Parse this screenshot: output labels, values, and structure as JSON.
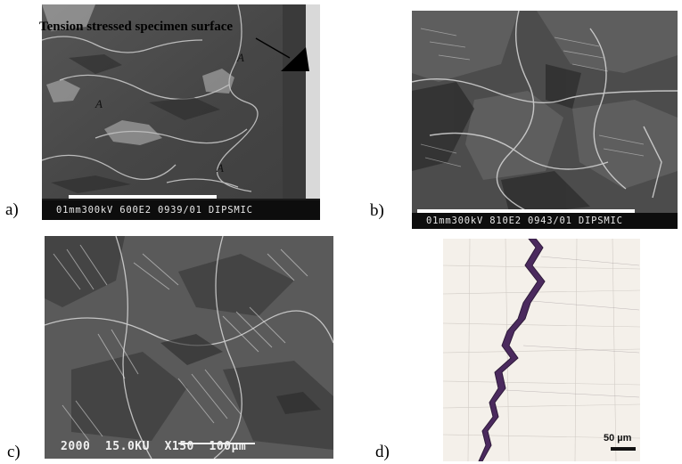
{
  "panels": {
    "a": {
      "label": "a)",
      "annotation": "Tension stressed specimen surface",
      "markers": [
        "A",
        "A",
        "A"
      ],
      "infobar": "01mm300kV 600E2 0939/01 DIPSMIC"
    },
    "b": {
      "label": "b)",
      "infobar": "01mm300kV 810E2 0943/01 DIPSMIC"
    },
    "c": {
      "label": "c)",
      "overlay": "2000  15.0KU  X150  100µm"
    },
    "d": {
      "label": "d)",
      "scale": "50 µm"
    }
  },
  "colors": {
    "sem_gray": "#4a4a4a",
    "crack_purple": "#4b2a5e",
    "optical_bg": "#f3efe9"
  }
}
